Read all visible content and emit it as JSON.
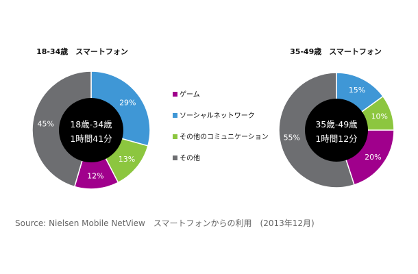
{
  "chart_data": [
    {
      "type": "pie",
      "title": "18-34歳　スマートフォン",
      "center_line1": "18歳-34歳",
      "center_line2": "1時間41分",
      "slices": [
        {
          "label": "ゲーム",
          "value": 12,
          "text": "12%",
          "color": "#a0008c"
        },
        {
          "label": "ソーシャルネットワーク",
          "value": 29,
          "text": "29%",
          "color": "#3f97d6"
        },
        {
          "label": "その他のコミュニケーション",
          "value": 13,
          "text": "13%",
          "color": "#8cc63f"
        },
        {
          "label": "その他",
          "value": 45,
          "text": "45%",
          "color": "#6d6e71"
        }
      ]
    },
    {
      "type": "pie",
      "title": "35-49歳　スマートフォン",
      "center_line1": "35歳-49歳",
      "center_line2": "1時間12分",
      "slices": [
        {
          "label": "ゲーム",
          "value": 20,
          "text": "20%",
          "color": "#a0008c"
        },
        {
          "label": "ソーシャルネットワーク",
          "value": 15,
          "text": "15%",
          "color": "#3f97d6"
        },
        {
          "label": "その他のコミュニケーション",
          "value": 10,
          "text": "10%",
          "color": "#8cc63f"
        },
        {
          "label": "その他",
          "value": 55,
          "text": "55%",
          "color": "#6d6e71"
        }
      ]
    }
  ],
  "legend": [
    {
      "label": "ゲーム",
      "color": "#a0008c"
    },
    {
      "label": "ソーシャルネットワーク",
      "color": "#3f97d6"
    },
    {
      "label": "その他のコミュニケーション",
      "color": "#8cc63f"
    },
    {
      "label": "その他",
      "color": "#6d6e71"
    }
  ],
  "source": "Source: Nielsen Mobile NetView　スマートフォンからの利用　(2013年12月)"
}
